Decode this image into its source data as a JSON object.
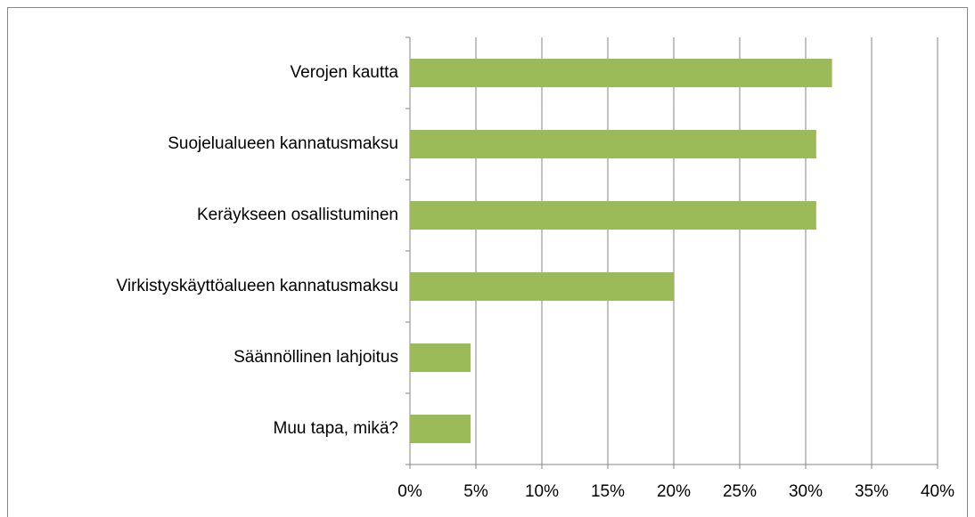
{
  "chart_data": {
    "type": "bar",
    "orientation": "horizontal",
    "categories": [
      "Verojen kautta",
      "Suojelualueen kannatusmaksu",
      "Keräykseen osallistuminen",
      "Virkistyskäyttöalueen kannatusmaksu",
      "Säännöllinen lahjoitus",
      "Muu tapa, mikä?"
    ],
    "values": [
      32,
      30.8,
      30.8,
      20,
      4.6,
      4.6
    ],
    "color": "#9bbb59",
    "xlim": [
      0,
      40
    ],
    "xticks": [
      {
        "value": 0,
        "label": "0%"
      },
      {
        "value": 5,
        "label": "5%"
      },
      {
        "value": 10,
        "label": "10%"
      },
      {
        "value": 15,
        "label": "15%"
      },
      {
        "value": 20,
        "label": "20%"
      },
      {
        "value": 25,
        "label": "25%"
      },
      {
        "value": 30,
        "label": "30%"
      },
      {
        "value": 35,
        "label": "35%"
      },
      {
        "value": 40,
        "label": "40%"
      }
    ],
    "grid": true
  }
}
